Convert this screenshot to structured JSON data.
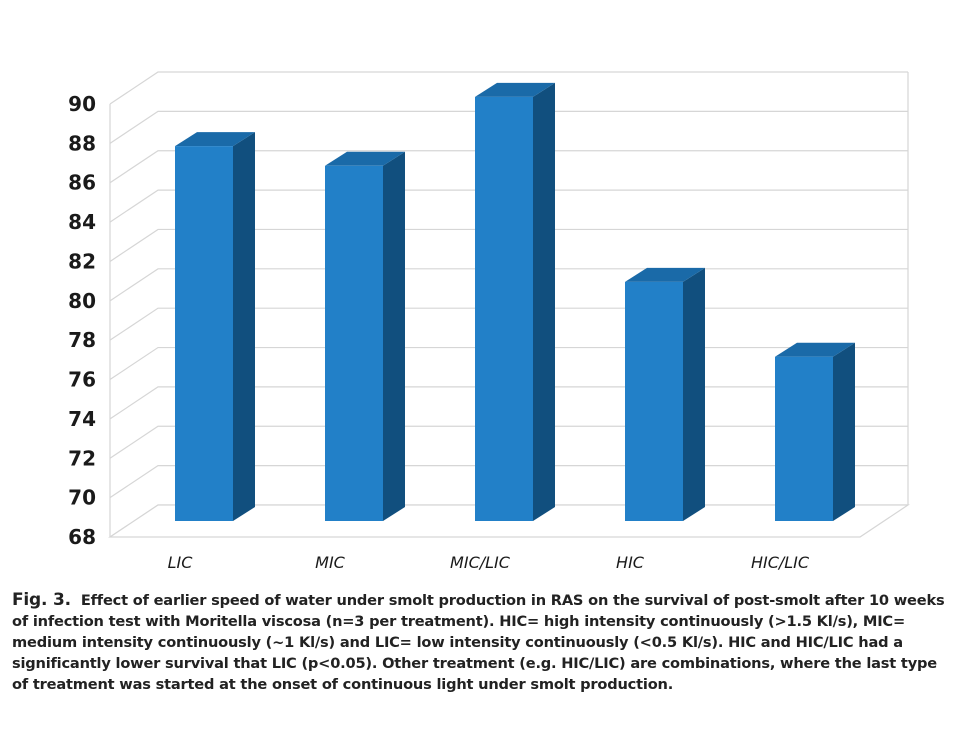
{
  "chart_data": {
    "type": "bar",
    "style": "3d-column",
    "categories": [
      "LIC",
      "MIC",
      "MIC/LIC",
      "HIC",
      "HIC/LIC"
    ],
    "values": [
      87.2,
      86.2,
      89.7,
      80.3,
      76.5
    ],
    "ylim": [
      68,
      90
    ],
    "yticks": [
      68,
      70,
      72,
      74,
      76,
      78,
      80,
      82,
      84,
      86,
      88,
      90
    ],
    "grid": true,
    "legend": "none",
    "colors": {
      "bar_front": "#2280c8",
      "bar_side": "#114f7e",
      "bar_top": "#1a6aa8",
      "grid": "#d6d6d6"
    }
  },
  "caption": {
    "label": "Fig. 3.",
    "text": "Effect of earlier speed of water under smolt production in RAS on the survival of post-smolt after 10 weeks of infection test with Moritella viscosa (n=3 per treatment). HIC= high intensity continuously (>1.5 Kl/s), MIC= medium intensity continuously (~1 Kl/s) and LIC= low intensity continuously (<0.5 Kl/s). HIC and HIC/LIC had a significantly lower survival that LIC (p<0.05). Other treatment (e.g. HIC/LIC) are combinations, where the last type of treatment was started at the onset of continuous light under smolt production."
  }
}
